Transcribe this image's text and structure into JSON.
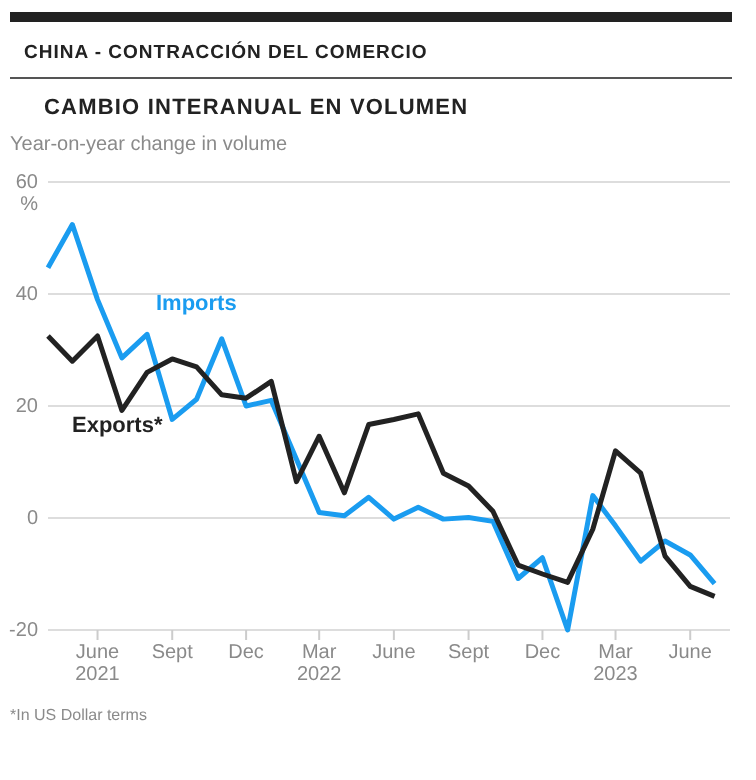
{
  "chart_data": {
    "type": "line",
    "title": "CHINA - CONTRACCIÓN DEL COMERCIO",
    "subtitle": "CAMBIO INTERANUAL EN VOLUMEN",
    "ylabel": "Year-on-year change in volume",
    "x": [
      "2021-04",
      "2021-05",
      "2021-06",
      "2021-07",
      "2021-08",
      "2021-09",
      "2021-10",
      "2021-11",
      "2021-12",
      "2022-01",
      "2022-02",
      "2022-03",
      "2022-04",
      "2022-05",
      "2022-06",
      "2022-07",
      "2022-08",
      "2022-09",
      "2022-10",
      "2022-11",
      "2022-12",
      "2023-01",
      "2023-02",
      "2023-03",
      "2023-04",
      "2023-05",
      "2023-06",
      "2023-07"
    ],
    "series": [
      {
        "name": "Imports",
        "color": "#1a9cf0",
        "values": [
          44.7,
          52.4,
          39,
          28.6,
          32.8,
          17.6,
          21.2,
          32,
          20,
          21,
          10.5,
          1,
          0.4,
          3.7,
          -0.2,
          1.9,
          -0.2,
          0.1,
          -0.6,
          -10.8,
          -7.1,
          -20,
          4,
          -1.4,
          -7.7,
          -4.1,
          -6.6,
          -11.7
        ]
      },
      {
        "name": "Exports*",
        "color": "#222222",
        "values": [
          32.5,
          28,
          32.5,
          19.2,
          26,
          28.4,
          27,
          22,
          21.4,
          24.4,
          6.5,
          14.6,
          4.5,
          16.7,
          17.6,
          18.6,
          8,
          5.7,
          1.2,
          -8.4,
          -10,
          -11.5,
          -2,
          12,
          8,
          -6.8,
          -12.2,
          -14
        ]
      }
    ],
    "xlim": [
      "2021-04",
      "2023-07-20"
    ],
    "ylim": [
      -20,
      60
    ],
    "yticks": [
      -20,
      0,
      20,
      40,
      {
        "value": 60,
        "label": "60\n%"
      }
    ],
    "xticks": [
      {
        "value": "2021-06",
        "label": "June\n2021"
      },
      {
        "value": "2021-09",
        "label": "Sept"
      },
      {
        "value": "2021-12",
        "label": "Dec"
      },
      {
        "value": "2022-03",
        "label": "Mar\n2022"
      },
      {
        "value": "2022-06",
        "label": "June"
      },
      {
        "value": "2022-09",
        "label": "Sept"
      },
      {
        "value": "2022-12",
        "label": "Dec"
      },
      {
        "value": "2023-03",
        "label": "Mar\n2023"
      },
      {
        "value": "2023-06",
        "label": "June"
      }
    ],
    "grid": "y",
    "line_style": "solid",
    "marker": "none",
    "annotations": [
      "*In US Dollar terms"
    ]
  }
}
